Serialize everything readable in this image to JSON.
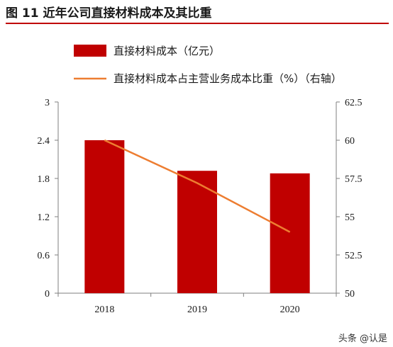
{
  "figure": {
    "title": "图 11 近年公司直接材料成本及其比重",
    "watermark": "头条 @认是"
  },
  "colors": {
    "bar": "#c00000",
    "line": "#ed7d31",
    "title_rule": "#c00000",
    "axis": "#7f7f7f"
  },
  "chart_data": {
    "type": "bar",
    "title": "",
    "categories": [
      "2018",
      "2019",
      "2020"
    ],
    "series": [
      {
        "name": "直接材料成本（亿元）",
        "type": "bar",
        "axis": "left",
        "values": [
          2.4,
          1.92,
          1.88
        ]
      },
      {
        "name": "直接材料成本占主营业务成本比重（%）（右轴）",
        "type": "line",
        "axis": "right",
        "values": [
          60.0,
          57.2,
          54.0
        ]
      }
    ],
    "y_left": {
      "min": 0,
      "max": 3,
      "ticks": [
        "0",
        "0.6",
        "1.2",
        "1.8",
        "2.4",
        "3"
      ]
    },
    "y_right": {
      "min": 50,
      "max": 62.5,
      "ticks": [
        "50",
        "52.5",
        "55",
        "57.5",
        "60",
        "62.5"
      ]
    },
    "legend_position": "top-left",
    "grid": false
  }
}
